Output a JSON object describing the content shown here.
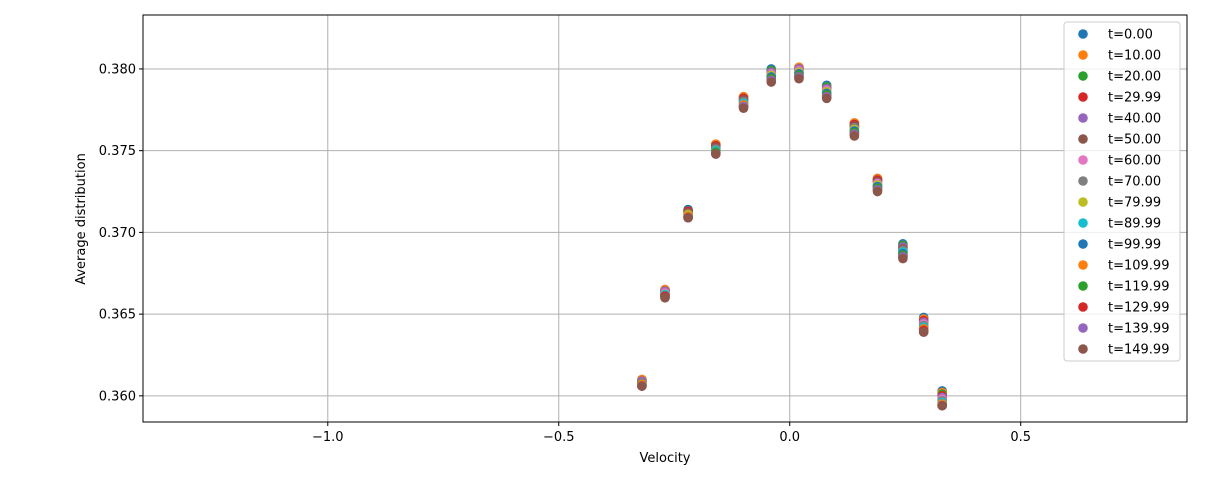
{
  "chart_data": {
    "type": "scatter",
    "title": "",
    "xlabel": "Velocity",
    "ylabel": "Average distribution",
    "xlim": [
      -1.4,
      0.86
    ],
    "ylim": [
      0.3584,
      0.3833
    ],
    "xticks": [
      -1.0,
      -0.5,
      0.0,
      0.5
    ],
    "xtick_labels": [
      "−1.0",
      "−0.5",
      "0.0",
      "0.5"
    ],
    "yticks": [
      0.36,
      0.365,
      0.37,
      0.375,
      0.38
    ],
    "ytick_labels": [
      "0.360",
      "0.365",
      "0.370",
      "0.375",
      "0.380"
    ],
    "grid": true,
    "legend_position": "top-right",
    "x": [
      -0.32,
      -0.27,
      -0.22,
      -0.16,
      -0.1,
      -0.04,
      0.02,
      0.08,
      0.14,
      0.19,
      0.245,
      0.29,
      0.33
    ],
    "series": [
      {
        "name": "t=0.00",
        "color": "#1f77b4",
        "values": [
          0.361,
          0.3665,
          0.3714,
          0.3754,
          0.3783,
          0.38,
          0.3801,
          0.379,
          0.3767,
          0.3733,
          0.3693,
          0.3648,
          0.3603
        ]
      },
      {
        "name": "t=10.00",
        "color": "#ff7f0e",
        "values": [
          0.361,
          0.3665,
          0.3713,
          0.3754,
          0.3783,
          0.3799,
          0.3801,
          0.3789,
          0.3767,
          0.3733,
          0.3692,
          0.3647,
          0.3602
        ]
      },
      {
        "name": "t=20.00",
        "color": "#2ca02c",
        "values": [
          0.3609,
          0.3664,
          0.3713,
          0.3753,
          0.3782,
          0.3799,
          0.38,
          0.3789,
          0.3766,
          0.3732,
          0.3692,
          0.3646,
          0.3601
        ]
      },
      {
        "name": "t=29.99",
        "color": "#d62728",
        "values": [
          0.3609,
          0.3664,
          0.3713,
          0.3753,
          0.3782,
          0.3798,
          0.38,
          0.3788,
          0.3766,
          0.3732,
          0.3691,
          0.3646,
          0.36
        ]
      },
      {
        "name": "t=40.00",
        "color": "#9467bd",
        "values": [
          0.3609,
          0.3664,
          0.3712,
          0.3752,
          0.3781,
          0.3798,
          0.38,
          0.3788,
          0.3765,
          0.3731,
          0.3691,
          0.3645,
          0.3599
        ]
      },
      {
        "name": "t=50.00",
        "color": "#8c564b",
        "values": [
          0.3608,
          0.3663,
          0.3712,
          0.3752,
          0.3781,
          0.3797,
          0.3799,
          0.3787,
          0.3765,
          0.3731,
          0.369,
          0.3644,
          0.3598
        ]
      },
      {
        "name": "t=60.00",
        "color": "#e377c2",
        "values": [
          0.3608,
          0.3663,
          0.3711,
          0.3751,
          0.378,
          0.3797,
          0.3799,
          0.3787,
          0.3764,
          0.373,
          0.3689,
          0.3644,
          0.3598
        ]
      },
      {
        "name": "t=70.00",
        "color": "#7f7f7f",
        "values": [
          0.3608,
          0.3662,
          0.3711,
          0.3751,
          0.378,
          0.3796,
          0.3798,
          0.3786,
          0.3764,
          0.3729,
          0.3689,
          0.3643,
          0.3597
        ]
      },
      {
        "name": "t=79.99",
        "color": "#bcbd22",
        "values": [
          0.3607,
          0.3662,
          0.3711,
          0.375,
          0.3779,
          0.3796,
          0.3798,
          0.3786,
          0.3763,
          0.3729,
          0.3688,
          0.3642,
          0.3596
        ]
      },
      {
        "name": "t=89.99",
        "color": "#17becf",
        "values": [
          0.3607,
          0.3662,
          0.371,
          0.375,
          0.3779,
          0.3795,
          0.3797,
          0.3785,
          0.3762,
          0.3728,
          0.3688,
          0.3642,
          0.3596
        ]
      },
      {
        "name": "t=99.99",
        "color": "#1f77b4",
        "values": [
          0.3607,
          0.3661,
          0.371,
          0.3749,
          0.3778,
          0.3795,
          0.3797,
          0.3785,
          0.3762,
          0.3728,
          0.3687,
          0.3641,
          0.3595
        ]
      },
      {
        "name": "t=109.99",
        "color": "#ff7f0e",
        "values": [
          0.3607,
          0.3661,
          0.371,
          0.3749,
          0.3778,
          0.3794,
          0.3796,
          0.3784,
          0.3761,
          0.3727,
          0.3686,
          0.3641,
          0.3595
        ]
      },
      {
        "name": "t=119.99",
        "color": "#2ca02c",
        "values": [
          0.3606,
          0.3661,
          0.3709,
          0.3749,
          0.3777,
          0.3794,
          0.3796,
          0.3784,
          0.3761,
          0.3727,
          0.3686,
          0.364,
          0.3594
        ]
      },
      {
        "name": "t=129.99",
        "color": "#d62728",
        "values": [
          0.3606,
          0.3661,
          0.3709,
          0.3748,
          0.3777,
          0.3793,
          0.3795,
          0.3783,
          0.376,
          0.3726,
          0.3685,
          0.364,
          0.3594
        ]
      },
      {
        "name": "t=139.99",
        "color": "#9467bd",
        "values": [
          0.3606,
          0.366,
          0.3709,
          0.3748,
          0.3777,
          0.3793,
          0.3795,
          0.3783,
          0.376,
          0.3726,
          0.3685,
          0.3639,
          0.3594
        ]
      },
      {
        "name": "t=149.99",
        "color": "#8c564b",
        "values": [
          0.3606,
          0.366,
          0.3709,
          0.3748,
          0.3776,
          0.3792,
          0.3794,
          0.3782,
          0.3759,
          0.3725,
          0.3684,
          0.3639,
          0.3594
        ]
      }
    ]
  }
}
